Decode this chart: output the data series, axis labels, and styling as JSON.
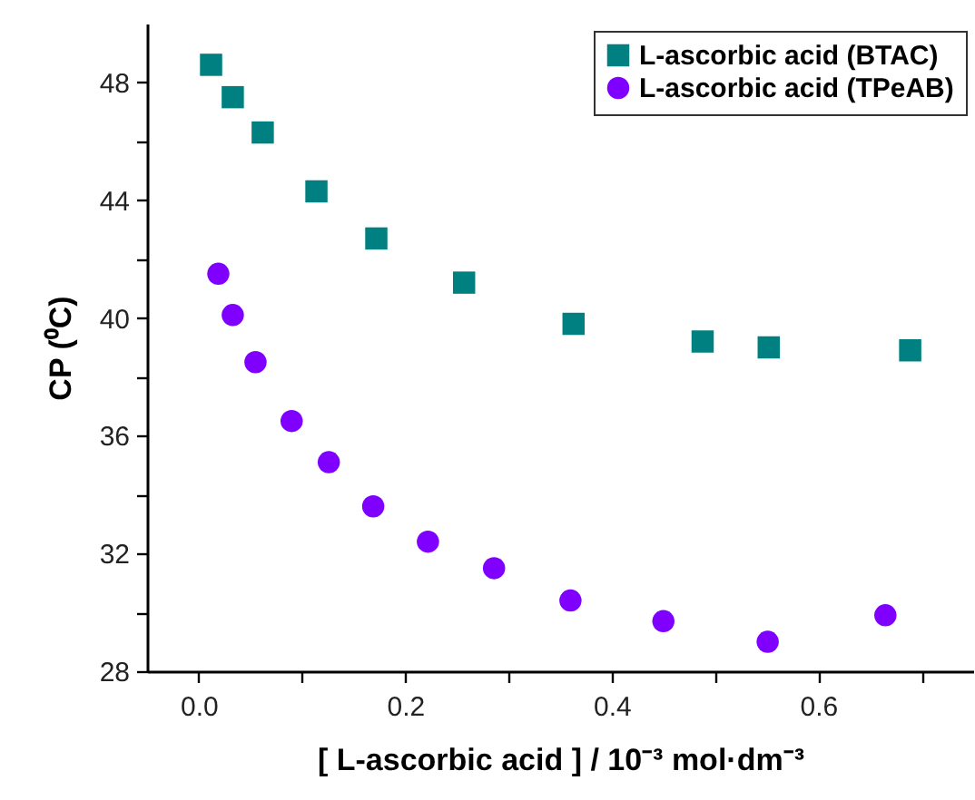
{
  "chart_data": {
    "type": "scatter",
    "xlabel": "[ L-ascorbic acid ] / 10⁻³ mol·dm⁻³",
    "ylabel": "CP (⁰C)",
    "xlim": [
      -0.05,
      0.75
    ],
    "ylim": [
      28,
      50
    ],
    "xticks": [
      {
        "value": 0,
        "label": "0.0"
      },
      {
        "value": 0.1,
        "label": null
      },
      {
        "value": 0.2,
        "label": "0.2"
      },
      {
        "value": 0.3,
        "label": null
      },
      {
        "value": 0.4,
        "label": "0.4"
      },
      {
        "value": 0.5,
        "label": null
      },
      {
        "value": 0.6,
        "label": "0.6"
      },
      {
        "value": 0.7,
        "label": null
      }
    ],
    "yticks": [
      28,
      {
        "value": 30,
        "label": null
      },
      32,
      {
        "value": 34,
        "label": null
      },
      36,
      {
        "value": 38,
        "label": null
      },
      40,
      {
        "value": 42,
        "label": null
      },
      44,
      {
        "value": 46,
        "label": null
      },
      48
    ],
    "legend": "top right",
    "grid": false,
    "series": [
      {
        "name": "L-ascorbic acid (BTAC)",
        "color": "#008080",
        "marker": "square",
        "x": [
          0.012,
          0.033,
          0.062,
          0.114,
          0.172,
          0.257,
          0.363,
          0.488,
          0.552,
          0.689
        ],
        "values": [
          48.6,
          47.5,
          46.3,
          44.3,
          42.7,
          41.2,
          39.8,
          39.2,
          39.0,
          38.9
        ]
      },
      {
        "name": "L-ascorbic acid (TPeAB)",
        "color": "#8000ff",
        "marker": "circle",
        "x": [
          0.019,
          0.033,
          0.055,
          0.09,
          0.126,
          0.169,
          0.222,
          0.286,
          0.36,
          0.45,
          0.551,
          0.665
        ],
        "values": [
          41.5,
          40.1,
          38.5,
          36.5,
          35.1,
          33.6,
          32.4,
          31.5,
          30.4,
          29.7,
          29.0,
          29.9
        ]
      }
    ]
  }
}
